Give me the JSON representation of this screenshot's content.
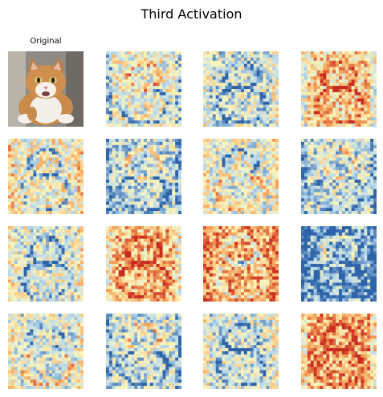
{
  "figure": {
    "title": "Third Activation",
    "original_label": "Original"
  },
  "colormap": {
    "low": "#2c63a9",
    "mid_low": "#b8d9ec",
    "mid": "#fdf6bb",
    "mid_high": "#f6a65c",
    "high": "#c92b1f"
  },
  "tiles": [
    {
      "kind": "photo",
      "label": "Original",
      "tone": 0.5
    },
    {
      "kind": "activation",
      "tone": 0.45
    },
    {
      "kind": "activation",
      "tone": 0.35
    },
    {
      "kind": "activation",
      "tone": 0.62
    },
    {
      "kind": "activation",
      "tone": 0.48
    },
    {
      "kind": "activation",
      "tone": 0.32
    },
    {
      "kind": "activation",
      "tone": 0.42
    },
    {
      "kind": "activation",
      "tone": 0.34
    },
    {
      "kind": "activation",
      "tone": 0.4
    },
    {
      "kind": "activation",
      "tone": 0.68
    },
    {
      "kind": "activation",
      "tone": 0.72
    },
    {
      "kind": "activation",
      "tone": 0.16
    },
    {
      "kind": "activation",
      "tone": 0.38
    },
    {
      "kind": "activation",
      "tone": 0.35
    },
    {
      "kind": "activation",
      "tone": 0.36
    },
    {
      "kind": "activation",
      "tone": 0.72
    }
  ]
}
